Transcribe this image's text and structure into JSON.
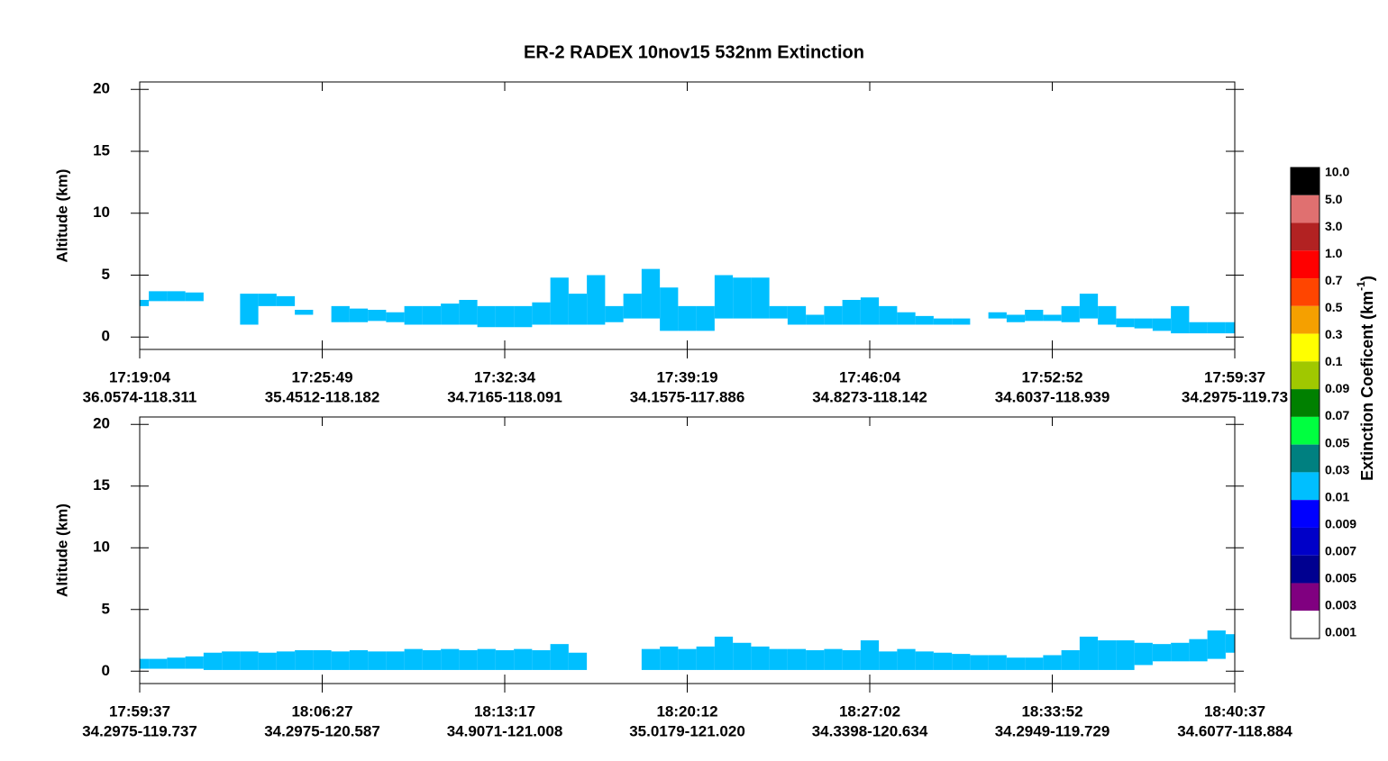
{
  "title": "ER-2  RADEX  10nov15  532nm Extinction",
  "chart_data": [
    {
      "type": "curtain",
      "ylabel": "Altitude (km)",
      "color": "#00bfff",
      "xlim": [
        0,
        6
      ],
      "ylim": [
        -1,
        20.6
      ],
      "yticks": [
        0,
        5,
        10,
        15,
        20
      ],
      "xticks": [
        {
          "value": 0,
          "label": "17:19:04",
          "sublabel": "36.0574-118.311"
        },
        {
          "value": 1,
          "label": "17:25:49",
          "sublabel": "35.4512-118.182"
        },
        {
          "value": 2,
          "label": "17:32:34",
          "sublabel": "34.7165-118.091"
        },
        {
          "value": 3,
          "label": "17:39:19",
          "sublabel": "34.1575-117.886"
        },
        {
          "value": 4,
          "label": "17:46:04",
          "sublabel": "34.8273-118.142"
        },
        {
          "value": 5,
          "label": "17:52:52",
          "sublabel": "34.6037-118.939"
        },
        {
          "value": 6,
          "label": "17:59:37",
          "sublabel": "34.2975-119.73"
        }
      ],
      "x": [
        0,
        0.1,
        0.2,
        0.3,
        0.4,
        0.5,
        0.6,
        0.7,
        0.8,
        0.9,
        1,
        1.1,
        1.2,
        1.3,
        1.4,
        1.5,
        1.6,
        1.7,
        1.8,
        1.9,
        2,
        2.1,
        2.2,
        2.3,
        2.4,
        2.5,
        2.6,
        2.7,
        2.8,
        2.9,
        3,
        3.1,
        3.2,
        3.3,
        3.4,
        3.5,
        3.6,
        3.7,
        3.8,
        3.9,
        4,
        4.1,
        4.2,
        4.3,
        4.4,
        4.5,
        4.6,
        4.7,
        4.8,
        4.9,
        5,
        5.1,
        5.2,
        5.3,
        5.4,
        5.5,
        5.6,
        5.7,
        5.8,
        5.9,
        6
      ],
      "top": [
        3.0,
        3.7,
        3.7,
        3.6,
        null,
        null,
        3.5,
        3.5,
        3.3,
        2.2,
        null,
        2.5,
        2.3,
        2.2,
        2.0,
        2.5,
        2.5,
        2.7,
        3.0,
        2.5,
        2.5,
        2.5,
        2.8,
        4.8,
        3.5,
        5.0,
        2.5,
        3.5,
        5.5,
        4.0,
        2.5,
        2.5,
        5.0,
        4.8,
        4.8,
        2.5,
        2.5,
        1.8,
        2.5,
        3.0,
        3.2,
        2.5,
        2.0,
        1.7,
        1.5,
        1.5,
        null,
        2.0,
        1.8,
        2.2,
        1.8,
        2.5,
        3.5,
        2.5,
        1.5,
        1.5,
        1.5,
        2.5,
        1.2,
        1.2,
        1.2
      ],
      "base": [
        2.5,
        2.9,
        2.9,
        2.9,
        null,
        null,
        1.0,
        2.5,
        2.5,
        1.8,
        null,
        1.2,
        1.2,
        1.3,
        1.2,
        1.0,
        1.0,
        1.0,
        1.0,
        0.8,
        0.8,
        0.8,
        1.0,
        1.0,
        1.0,
        1.0,
        1.2,
        1.5,
        1.5,
        0.5,
        0.5,
        0.5,
        1.5,
        1.5,
        1.5,
        1.5,
        1.0,
        1.0,
        1.0,
        1.0,
        1.0,
        1.0,
        1.0,
        1.0,
        1.0,
        1.0,
        null,
        1.5,
        1.2,
        1.3,
        1.3,
        1.2,
        1.5,
        1.0,
        0.8,
        0.7,
        0.5,
        0.3,
        0.3,
        0.3,
        0.3
      ]
    },
    {
      "type": "curtain",
      "ylabel": "Altitude (km)",
      "color": "#00bfff",
      "xlim": [
        0,
        6
      ],
      "ylim": [
        -1,
        20.6
      ],
      "yticks": [
        0,
        5,
        10,
        15,
        20
      ],
      "xticks": [
        {
          "value": 0,
          "label": "17:59:37",
          "sublabel": "34.2975-119.737"
        },
        {
          "value": 1,
          "label": "18:06:27",
          "sublabel": "34.2975-120.587"
        },
        {
          "value": 2,
          "label": "18:13:17",
          "sublabel": "34.9071-121.008"
        },
        {
          "value": 3,
          "label": "18:20:12",
          "sublabel": "35.0179-121.020"
        },
        {
          "value": 4,
          "label": "18:27:02",
          "sublabel": "34.3398-120.634"
        },
        {
          "value": 5,
          "label": "18:33:52",
          "sublabel": "34.2949-119.729"
        },
        {
          "value": 6,
          "label": "18:40:37",
          "sublabel": "34.6077-118.884"
        }
      ],
      "x": [
        0,
        0.1,
        0.2,
        0.3,
        0.4,
        0.5,
        0.6,
        0.7,
        0.8,
        0.9,
        1,
        1.1,
        1.2,
        1.3,
        1.4,
        1.5,
        1.6,
        1.7,
        1.8,
        1.9,
        2,
        2.1,
        2.2,
        2.3,
        2.4,
        2.5,
        2.6,
        2.7,
        2.8,
        2.9,
        3,
        3.1,
        3.2,
        3.3,
        3.4,
        3.5,
        3.6,
        3.7,
        3.8,
        3.9,
        4,
        4.1,
        4.2,
        4.3,
        4.4,
        4.5,
        4.6,
        4.7,
        4.8,
        4.9,
        5,
        5.1,
        5.2,
        5.3,
        5.4,
        5.5,
        5.6,
        5.7,
        5.8,
        5.9,
        6
      ],
      "top": [
        1.0,
        1.0,
        1.1,
        1.2,
        1.5,
        1.6,
        1.6,
        1.5,
        1.6,
        1.7,
        1.7,
        1.6,
        1.7,
        1.6,
        1.6,
        1.8,
        1.7,
        1.8,
        1.7,
        1.8,
        1.7,
        1.8,
        1.7,
        2.2,
        1.5,
        null,
        null,
        null,
        1.8,
        2.0,
        1.8,
        2.0,
        2.8,
        2.3,
        2.0,
        1.8,
        1.8,
        1.7,
        1.8,
        1.7,
        2.5,
        1.6,
        1.8,
        1.6,
        1.5,
        1.4,
        1.3,
        1.3,
        1.1,
        1.1,
        1.3,
        1.7,
        2.8,
        2.5,
        2.5,
        2.3,
        2.2,
        2.3,
        2.6,
        3.3,
        3.0
      ],
      "base": [
        0.2,
        0.2,
        0.2,
        0.2,
        0.1,
        0.1,
        0.1,
        0.1,
        0.1,
        0.1,
        0.1,
        0.1,
        0.1,
        0.1,
        0.1,
        0.1,
        0.1,
        0.1,
        0.1,
        0.1,
        0.1,
        0.1,
        0.1,
        0.1,
        0.1,
        null,
        null,
        null,
        0.1,
        0.1,
        0.1,
        0.1,
        0.1,
        0.1,
        0.1,
        0.1,
        0.1,
        0.1,
        0.1,
        0.1,
        0.1,
        0.1,
        0.1,
        0.1,
        0.1,
        0.1,
        0.1,
        0.1,
        0.1,
        0.1,
        0.1,
        0.1,
        0.1,
        0.1,
        0.1,
        0.5,
        0.8,
        0.8,
        0.8,
        1.0,
        1.5
      ]
    }
  ],
  "colorbar": {
    "label": "Extinction Coeficent (km",
    "label_exp": "-1",
    "label_end": ")",
    "ticks": [
      {
        "value": 10,
        "label": "10.0"
      },
      {
        "value": 5,
        "label": "5.0"
      },
      {
        "value": 3,
        "label": "3.0"
      },
      {
        "value": 1,
        "label": "1.0"
      },
      0.7,
      0.5,
      0.3,
      0.1,
      0.09,
      0.07,
      0.05,
      0.03,
      0.01,
      0.009,
      0.007,
      0.005,
      0.003,
      0.001
    ],
    "colors": [
      "#000000",
      "#e07070",
      "#b22222",
      "#ff0000",
      "#ff4500",
      "#f5a000",
      "#ffff00",
      "#a0c800",
      "#008000",
      "#00ff40",
      "#008080",
      "#00bfff",
      "#0000ff",
      "#0000c8",
      "#000090",
      "#800080",
      "#ffffff"
    ]
  }
}
